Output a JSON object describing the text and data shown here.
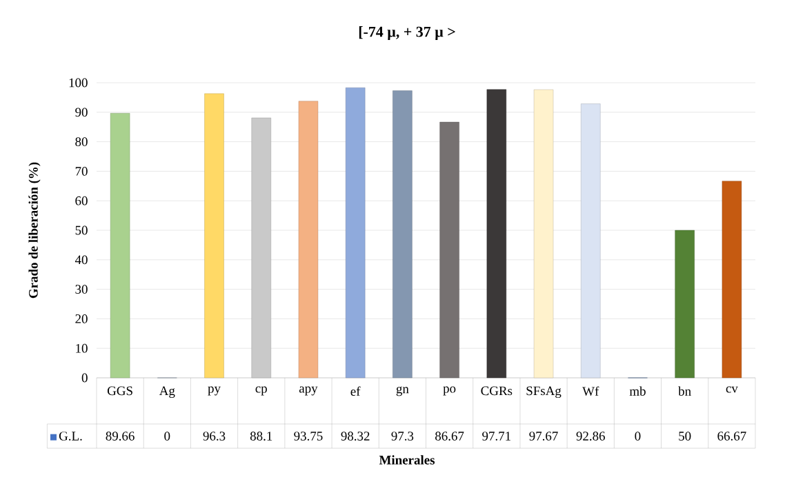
{
  "chart_data": {
    "type": "bar",
    "title": "[-74 µ, + 37 µ >",
    "xlabel": "Minerales",
    "ylabel": "Grado de liberación (%)",
    "categories": [
      "GGS",
      "Ag",
      "py",
      "cp",
      "apy",
      "ef",
      "gn",
      "po",
      "CGRs",
      "SFsAg",
      "Wf",
      "mb",
      "bn",
      "cv"
    ],
    "series": [
      {
        "name": "G.L.",
        "color": "#4472c4",
        "values": [
          89.66,
          0,
          96.3,
          88.1,
          93.75,
          98.32,
          97.3,
          86.67,
          97.71,
          97.67,
          92.86,
          0,
          50,
          66.67
        ],
        "colors": [
          "#a9d18e",
          "#8497b0",
          "#ffd966",
          "#c9c9c9",
          "#f4b183",
          "#8faadc",
          "#8497b0",
          "#767171",
          "#3b3838",
          "#fff2cc",
          "#dae3f3",
          "#2f5597",
          "#548235",
          "#c55a11"
        ]
      }
    ],
    "ylim": [
      0,
      100
    ],
    "yticks": [
      0,
      10,
      20,
      30,
      40,
      50,
      60,
      70,
      80,
      90,
      100
    ],
    "grid": "y",
    "data_labels": true,
    "legend": "bottom left"
  }
}
